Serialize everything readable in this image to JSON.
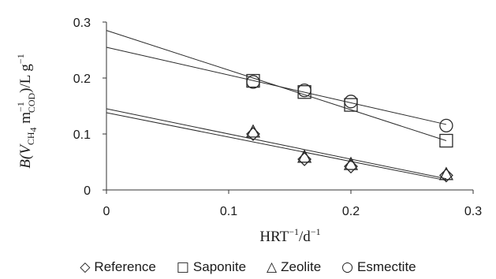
{
  "chart_data": {
    "type": "scatter",
    "xlabel": {
      "main": "HRT",
      "sup1": "−1",
      "tail": "/d",
      "sup2": "−1"
    },
    "ylabel": {
      "prefix": "B(",
      "v": "V",
      "vsub": "CH",
      "vsub2": "4",
      "m": " m",
      "msup": "−1",
      "msub": "COD",
      "tail": ")/L g",
      "tailsup": "−1"
    },
    "xlim": [
      0,
      0.3
    ],
    "ylim": [
      0,
      0.3
    ],
    "x_ticks": [
      "0",
      "0.1",
      "0.2",
      "0.3"
    ],
    "y_ticks": [
      "0",
      "0.1",
      "0.2",
      "0.3"
    ],
    "grid": false,
    "legend_position": "bottom",
    "series": [
      {
        "name": "Reference",
        "marker": "diamond",
        "glyph": "◇",
        "points": [
          [
            0.12,
            0.1
          ],
          [
            0.162,
            0.055
          ],
          [
            0.2,
            0.042
          ],
          [
            0.278,
            0.026
          ]
        ],
        "fit_line": [
          [
            0,
            0.145
          ],
          [
            0.278,
            0.02
          ]
        ]
      },
      {
        "name": "Saponite",
        "marker": "square",
        "glyph": "□",
        "points": [
          [
            0.12,
            0.195
          ],
          [
            0.162,
            0.175
          ],
          [
            0.2,
            0.152
          ],
          [
            0.278,
            0.088
          ]
        ],
        "fit_line": [
          [
            0,
            0.285
          ],
          [
            0.278,
            0.088
          ]
        ]
      },
      {
        "name": "Zeolite",
        "marker": "triangle",
        "glyph": "△",
        "points": [
          [
            0.12,
            0.103
          ],
          [
            0.162,
            0.058
          ],
          [
            0.2,
            0.045
          ],
          [
            0.278,
            0.027
          ]
        ],
        "fit_line": [
          [
            0,
            0.138
          ],
          [
            0.278,
            0.017
          ]
        ]
      },
      {
        "name": "Esmectite",
        "marker": "circle",
        "glyph": "○",
        "points": [
          [
            0.12,
            0.193
          ],
          [
            0.162,
            0.178
          ],
          [
            0.2,
            0.158
          ],
          [
            0.278,
            0.115
          ]
        ],
        "fit_line": [
          [
            0,
            0.255
          ],
          [
            0.278,
            0.117
          ]
        ]
      }
    ]
  }
}
